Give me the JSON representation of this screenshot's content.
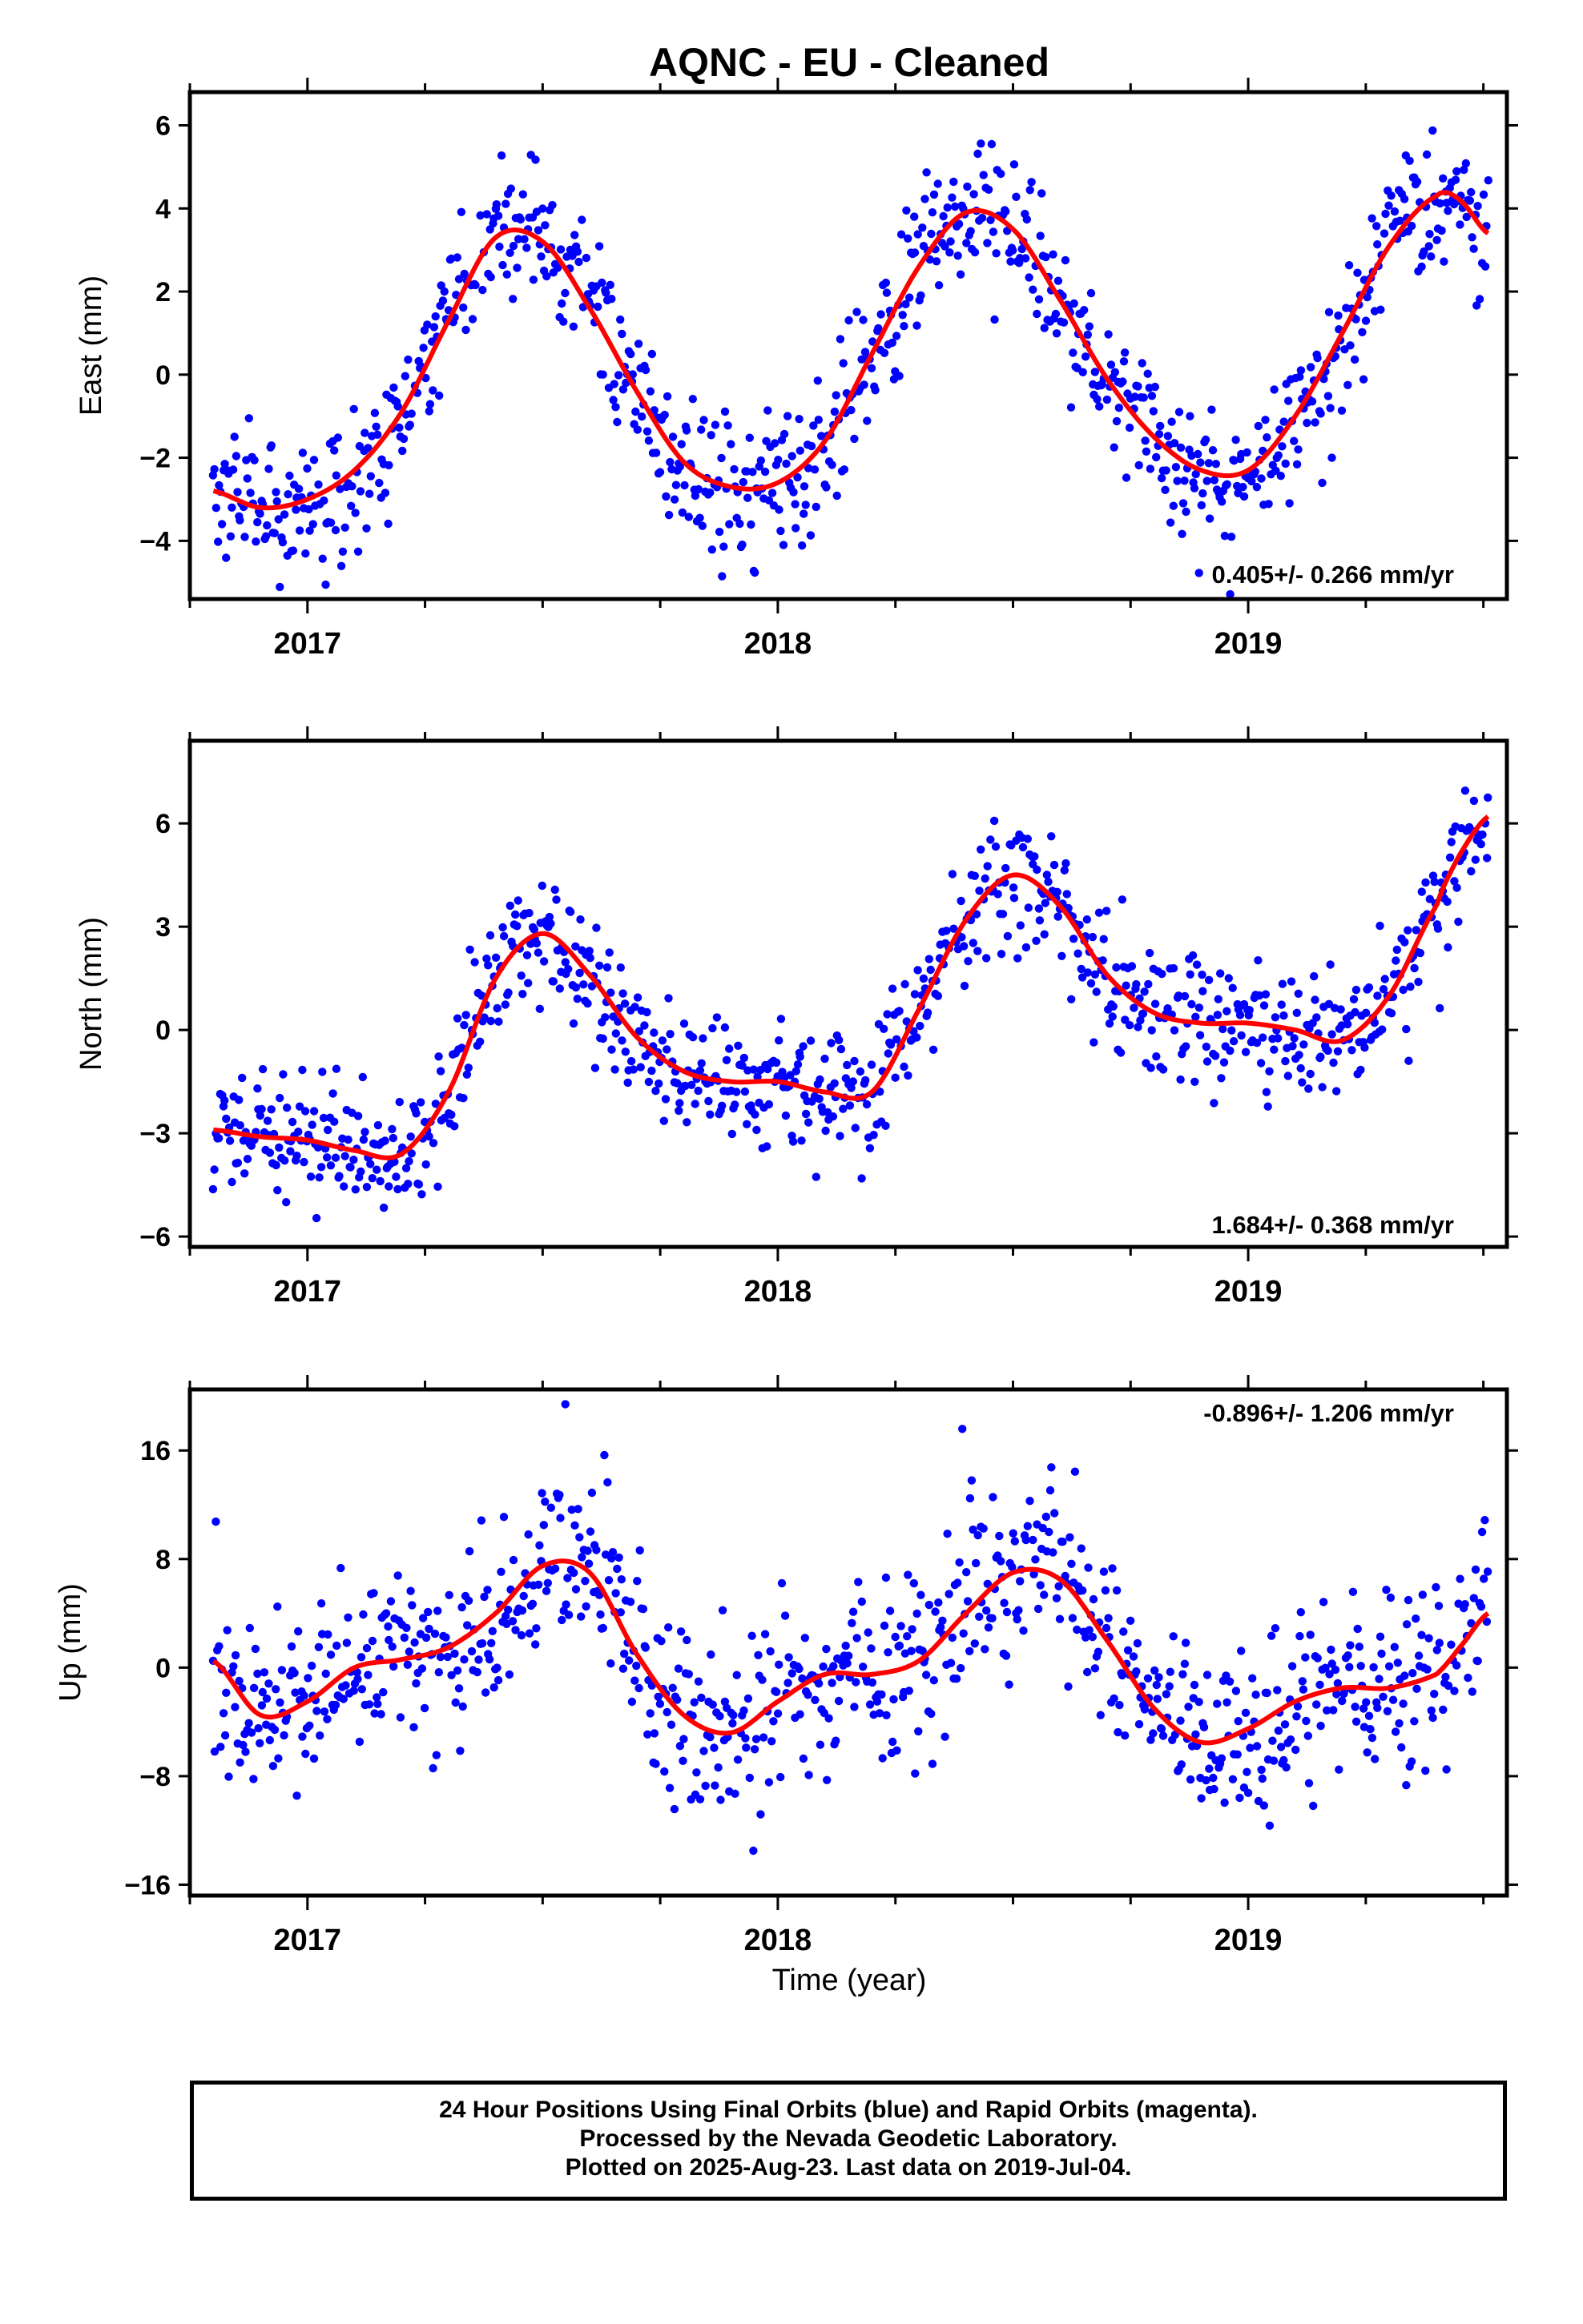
{
  "title": "AQNC  - EU - Cleaned",
  "xlabel": "Time (year)",
  "caption": [
    "24 Hour Positions Using Final Orbits (blue) and Rapid Orbits (magenta).",
    "Processed by the Nevada Geodetic Laboratory.",
    "Plotted on 2025-Aug-23. Last data on 2019-Jul-04."
  ],
  "colors": {
    "points": "#0000ff",
    "fit": "#ff0000",
    "axes": "#000000"
  },
  "chart_data": [
    {
      "type": "scatter",
      "ylabel": "East (mm)",
      "rate_label": "0.405+/- 0.266 mm/yr",
      "xlim": [
        2016.75,
        2019.55
      ],
      "ylim": [
        -5.4,
        6.8
      ],
      "yticks": [
        -4,
        -2,
        0,
        2,
        4,
        6
      ],
      "xticks": [
        2017,
        2018,
        2019
      ],
      "scatter_sd": 0.85,
      "fit": {
        "x": [
          2016.8,
          2016.9,
          2017.0,
          2017.1,
          2017.2,
          2017.3,
          2017.4,
          2017.5,
          2017.6,
          2017.7,
          2017.8,
          2017.9,
          2018.0,
          2018.1,
          2018.2,
          2018.3,
          2018.4,
          2018.5,
          2018.6,
          2018.7,
          2018.8,
          2018.9,
          2019.0,
          2019.1,
          2019.2,
          2019.3,
          2019.4,
          2019.45,
          2019.51
        ],
        "y": [
          -2.8,
          -3.2,
          -3.0,
          -2.3,
          -0.9,
          1.3,
          3.3,
          3.2,
          1.6,
          -0.4,
          -2.1,
          -2.7,
          -2.6,
          -1.6,
          0.5,
          2.6,
          3.9,
          3.5,
          1.8,
          -0.1,
          -1.5,
          -2.3,
          -2.3,
          -1.0,
          1.0,
          3.1,
          4.3,
          4.2,
          3.4
        ]
      }
    },
    {
      "type": "scatter",
      "ylabel": "North (mm)",
      "rate_label": "1.684+/- 0.368 mm/yr",
      "xlim": [
        2016.75,
        2019.55
      ],
      "ylim": [
        -6.3,
        8.4
      ],
      "yticks": [
        -6,
        -3,
        0,
        3,
        6
      ],
      "xticks": [
        2017,
        2018,
        2019
      ],
      "scatter_sd": 0.9,
      "fit": {
        "x": [
          2016.8,
          2016.9,
          2017.0,
          2017.1,
          2017.2,
          2017.3,
          2017.4,
          2017.5,
          2017.6,
          2017.7,
          2017.8,
          2017.9,
          2018.0,
          2018.1,
          2018.2,
          2018.3,
          2018.4,
          2018.5,
          2018.6,
          2018.7,
          2018.8,
          2018.9,
          2019.0,
          2019.1,
          2019.2,
          2019.3,
          2019.4,
          2019.45,
          2019.51
        ],
        "y": [
          -2.9,
          -3.1,
          -3.2,
          -3.5,
          -3.6,
          -1.8,
          1.5,
          2.8,
          1.6,
          -0.2,
          -1.2,
          -1.5,
          -1.5,
          -1.8,
          -1.8,
          0.6,
          3.2,
          4.5,
          3.6,
          1.6,
          0.5,
          0.2,
          0.2,
          0.0,
          -0.3,
          1.0,
          3.6,
          5.1,
          6.2
        ]
      }
    },
    {
      "type": "scatter",
      "ylabel": "Up (mm)",
      "rate_label": "-0.896+/- 1.206 mm/yr",
      "xlim": [
        2016.75,
        2019.55
      ],
      "ylim": [
        -16.8,
        20.5
      ],
      "yticks": [
        -16,
        -8,
        0,
        8,
        16
      ],
      "xticks": [
        2017,
        2018,
        2019
      ],
      "scatter_sd": 3.4,
      "fit": {
        "x": [
          2016.8,
          2016.9,
          2017.0,
          2017.1,
          2017.2,
          2017.3,
          2017.4,
          2017.5,
          2017.6,
          2017.7,
          2017.8,
          2017.9,
          2018.0,
          2018.1,
          2018.2,
          2018.3,
          2018.4,
          2018.5,
          2018.6,
          2018.7,
          2018.8,
          2018.9,
          2019.0,
          2019.1,
          2019.2,
          2019.3,
          2019.4,
          2019.45,
          2019.51
        ],
        "y": [
          0.5,
          -3.5,
          -2.5,
          0.0,
          0.6,
          1.5,
          4.0,
          7.5,
          7.0,
          1.0,
          -3.5,
          -4.8,
          -2.5,
          -0.5,
          -0.5,
          0.5,
          4.0,
          7.0,
          6.5,
          2.0,
          -3.0,
          -5.5,
          -4.5,
          -2.5,
          -1.5,
          -1.5,
          -0.5,
          1.5,
          4.0
        ]
      }
    }
  ]
}
